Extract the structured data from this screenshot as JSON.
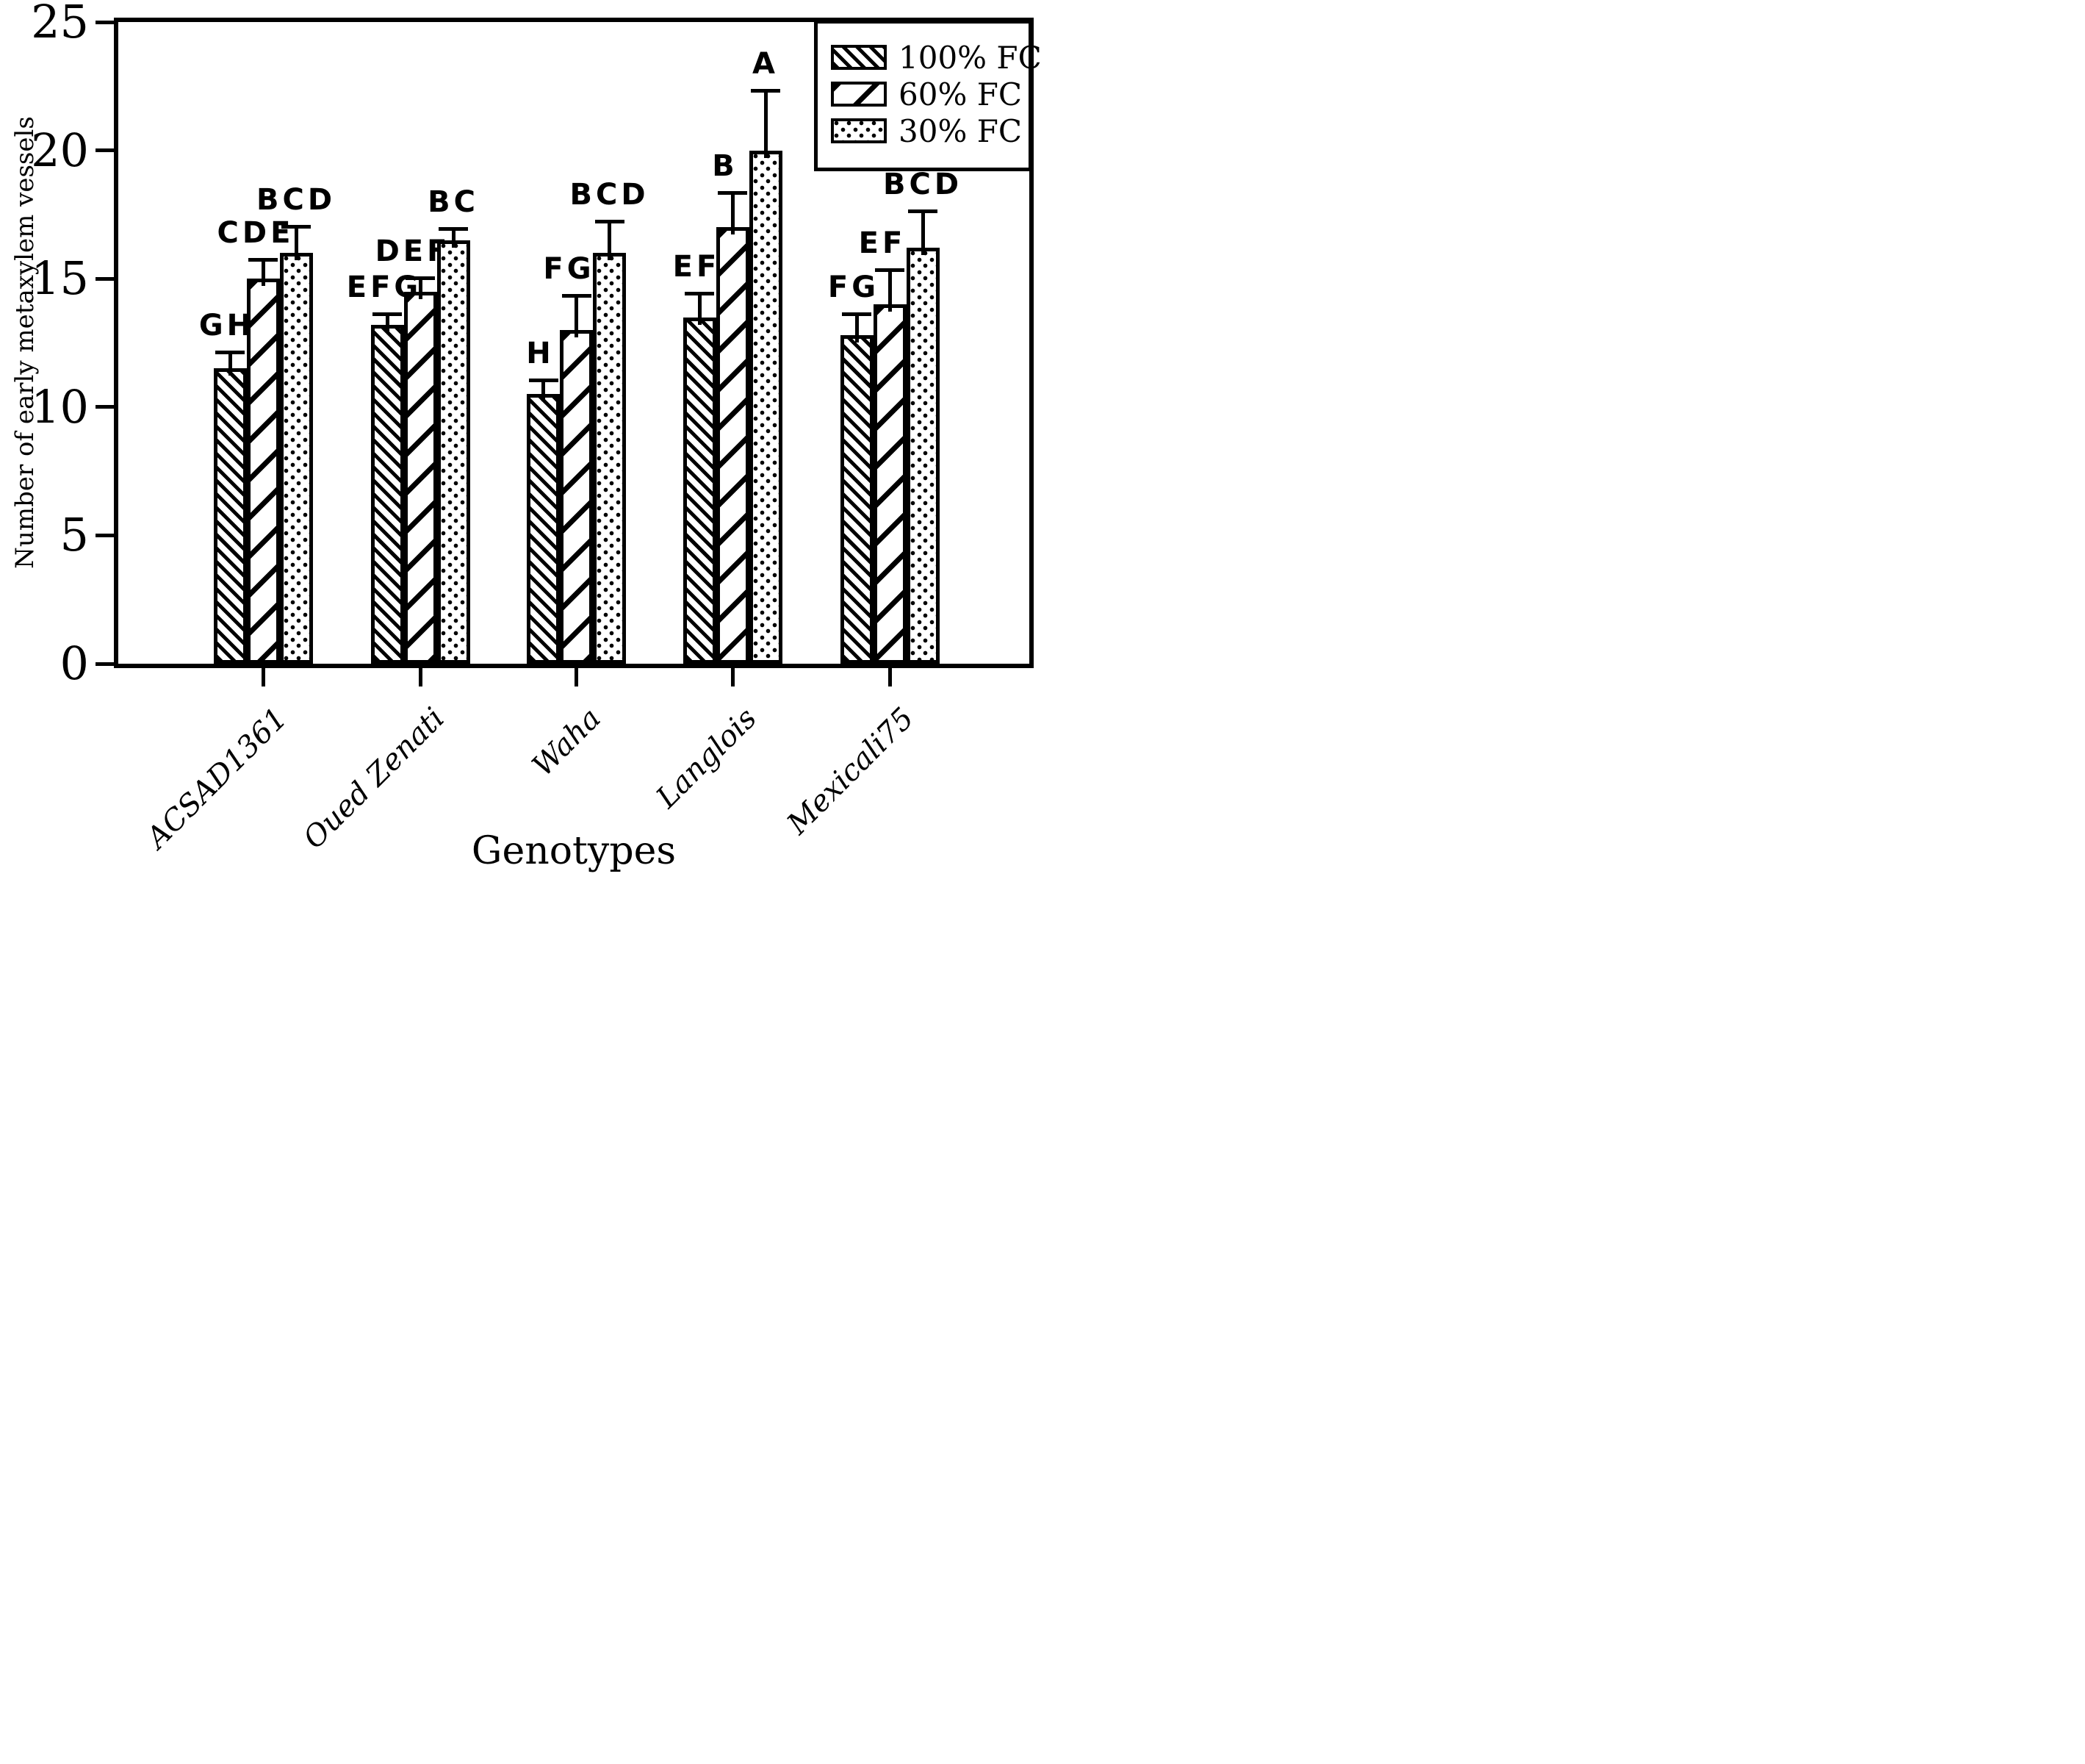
{
  "figure": {
    "background": "#ffffff",
    "foreground": "#000000"
  },
  "chart_data": {
    "type": "bar",
    "title": "",
    "xlabel": "Genotypes",
    "ylabel": "Number of early metaxylem vessels",
    "ylim": [
      0,
      25
    ],
    "yticks": [
      0,
      5,
      10,
      15,
      20,
      25
    ],
    "grid": false,
    "legend_position": "top-right",
    "error_bars": "upper-only",
    "categories": [
      "ACSAD1361",
      "Oued Zenati",
      "Waha",
      "Langlois",
      "Mexicali75"
    ],
    "series": [
      {
        "name": "100% FC",
        "pattern": "dense-forward-diagonal-hatch",
        "values": [
          11.5,
          13.2,
          10.5,
          13.5,
          12.8
        ],
        "errors": [
          0.7,
          0.5,
          0.6,
          1.0,
          0.9
        ],
        "letters": [
          "GH",
          "EFG",
          "H",
          "EF",
          "FG"
        ]
      },
      {
        "name": "60% FC",
        "pattern": "sparse-backward-diagonal-lines",
        "values": [
          15.0,
          14.5,
          13.0,
          17.0,
          14.0
        ],
        "errors": [
          0.8,
          0.6,
          1.4,
          1.4,
          1.4
        ],
        "letters": [
          "CDE",
          "DEF",
          "FG",
          "B",
          "EF"
        ]
      },
      {
        "name": "30% FC",
        "pattern": "dotted",
        "values": [
          16.0,
          16.5,
          16.0,
          20.0,
          16.2
        ],
        "errors": [
          1.1,
          0.5,
          1.3,
          2.4,
          1.5
        ],
        "letters": [
          "BCD",
          "BC",
          "BCD",
          "A",
          "BCD"
        ]
      }
    ]
  }
}
